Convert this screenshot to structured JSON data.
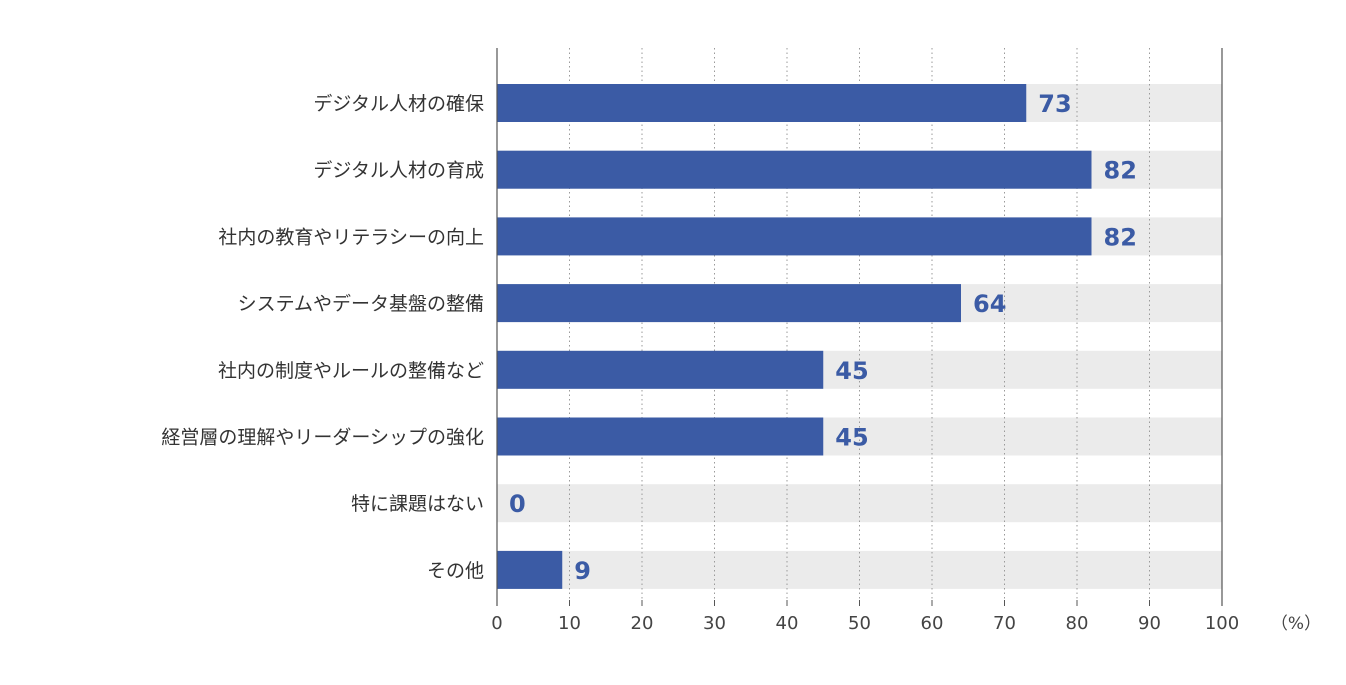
{
  "chart_data": {
    "type": "bar",
    "orientation": "horizontal",
    "categories": [
      "デジタル人材の確保",
      "デジタル人材の育成",
      "社内の教育やリテラシーの向上",
      "システムやデータ基盤の整備",
      "社内の制度やルールの整備など",
      "経営層の理解やリーダーシップの強化",
      "特に課題はない",
      "その他"
    ],
    "values": [
      73,
      82,
      82,
      64,
      45,
      45,
      0,
      9
    ],
    "value_labels": [
      "73",
      "82",
      "82",
      "64",
      "45",
      "45",
      "0",
      "9"
    ],
    "xlim": [
      0,
      100
    ],
    "xticks": [
      0,
      10,
      20,
      30,
      40,
      50,
      60,
      70,
      80,
      90,
      100
    ],
    "xtick_labels": [
      "0",
      "10",
      "20",
      "30",
      "40",
      "50",
      "60",
      "70",
      "80",
      "90",
      "100"
    ],
    "x_unit": "（%）",
    "grid": "vertical dotted",
    "bar_color": "#3b5ba5",
    "track_color": "#ebebeb",
    "value_label_color": "#3b5ba5"
  }
}
